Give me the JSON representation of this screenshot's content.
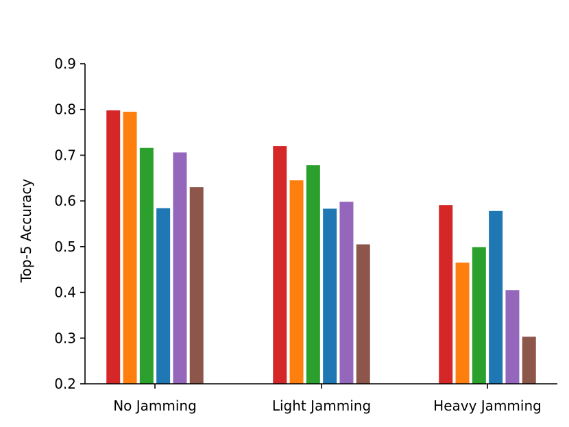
{
  "chart_data": {
    "type": "bar",
    "title": "",
    "xlabel": "",
    "ylabel": "Top-5 Accuracy",
    "ylim": [
      0.2,
      0.9
    ],
    "yticks": [
      "0.2",
      "0.3",
      "0.4",
      "0.5",
      "0.6",
      "0.7",
      "0.8",
      "0.9"
    ],
    "grid": false,
    "categories": [
      "No Jamming",
      "Light Jamming",
      "Heavy Jamming"
    ],
    "series": [
      {
        "color": "#d62728",
        "values": [
          0.798,
          0.72,
          0.591
        ]
      },
      {
        "color": "#ff7f0e",
        "values": [
          0.795,
          0.645,
          0.465
        ]
      },
      {
        "color": "#2ca02c",
        "values": [
          0.716,
          0.678,
          0.499
        ]
      },
      {
        "color": "#1f77b4",
        "values": [
          0.584,
          0.583,
          0.578
        ]
      },
      {
        "color": "#9467bd",
        "values": [
          0.706,
          0.598,
          0.405
        ]
      },
      {
        "color": "#8c564b",
        "values": [
          0.63,
          0.505,
          0.303
        ]
      }
    ]
  }
}
